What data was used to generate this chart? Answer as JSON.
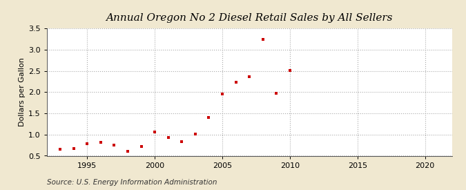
{
  "title": "Annual Oregon No 2 Diesel Retail Sales by All Sellers",
  "ylabel": "Dollars per Gallon",
  "source": "Source: U.S. Energy Information Administration",
  "figure_bg": "#f0e8d0",
  "plot_bg": "#ffffff",
  "marker_color": "#cc0000",
  "xlim": [
    1992,
    2022
  ],
  "ylim": [
    0.5,
    3.5
  ],
  "xticks": [
    1995,
    2000,
    2005,
    2010,
    2015,
    2020
  ],
  "yticks": [
    0.5,
    1.0,
    1.5,
    2.0,
    2.5,
    3.0,
    3.5
  ],
  "years": [
    1993,
    1994,
    1995,
    1996,
    1997,
    1998,
    1999,
    2000,
    2001,
    2002,
    2003,
    2004,
    2005,
    2006,
    2007,
    2008,
    2009,
    2010
  ],
  "values": [
    0.65,
    0.67,
    0.79,
    0.81,
    0.76,
    0.61,
    0.72,
    1.06,
    0.93,
    0.83,
    1.01,
    1.4,
    1.96,
    2.23,
    2.37,
    3.24,
    1.97,
    2.51
  ],
  "title_fontsize": 11,
  "ylabel_fontsize": 8,
  "tick_fontsize": 8,
  "source_fontsize": 7.5
}
